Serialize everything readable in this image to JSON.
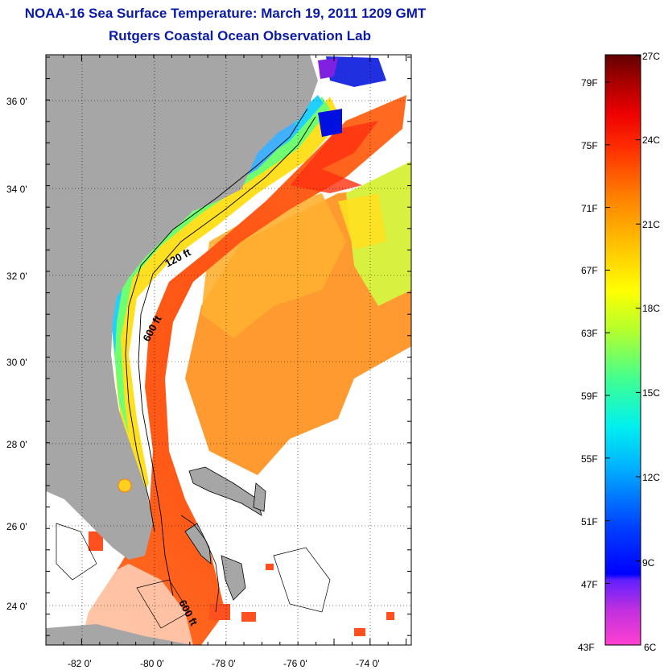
{
  "header": {
    "title": "NOAA-16 Sea Surface Temperature:  March 19, 2011 1209 GMT",
    "subtitle": "Rutgers Coastal Ocean Observation Lab"
  },
  "map": {
    "lon_ticks": [
      "-82 0'",
      "-80 0'",
      "-78 0'",
      "-76 0'",
      "-74 0'"
    ],
    "lat_ticks": [
      "36 0'",
      "34 0'",
      "32 0'",
      "30 0'",
      "28 0'",
      "26 0'",
      "24 0'"
    ],
    "lon_range": [
      -83,
      -73
    ],
    "lat_range": [
      23,
      37
    ],
    "contour_labels": [
      "120 ft",
      "600 ft",
      "600 ft"
    ],
    "colors": {
      "land": "#a6a6a6",
      "clouds": "#ffffff"
    }
  },
  "colorbar": {
    "fahrenheit_labels": [
      "79F",
      "75F",
      "71F",
      "67F",
      "63F",
      "59F",
      "55F",
      "51F",
      "47F",
      "43F"
    ],
    "celsius_labels": [
      "27C",
      "24C",
      "21C",
      "18C",
      "15C",
      "12C",
      "9C",
      "6C"
    ],
    "stops": [
      "#ff40d0",
      "#a020f0",
      "#0000ff",
      "#0060ff",
      "#00c0ff",
      "#00f0e0",
      "#40ff80",
      "#c0ff20",
      "#ffff00",
      "#ffc000",
      "#ff8000",
      "#ff4000",
      "#ff0000",
      "#c00000",
      "#600000"
    ]
  }
}
